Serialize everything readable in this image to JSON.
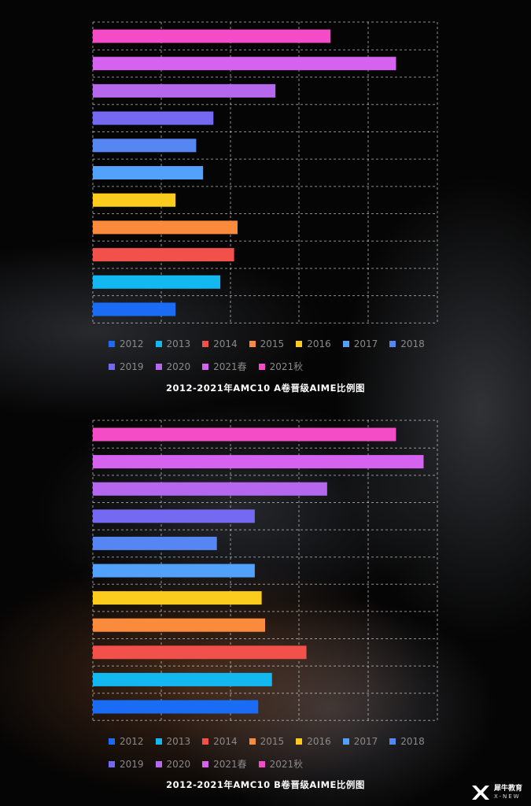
{
  "legend_colors": {
    "2012": "#1a6cf5",
    "2013": "#12b8ef",
    "2014": "#f2504b",
    "2015": "#fa8a3c",
    "2016": "#fbcb1e",
    "2017": "#52a2fc",
    "2018": "#5686f2",
    "2019": "#7469f0",
    "2020": "#b567ee",
    "2021春": "#d563ef",
    "2021秋": "#f44cc6"
  },
  "chart_data": [
    {
      "type": "bar",
      "orientation": "horizontal",
      "title": "2012-2021年AMC10 A卷晋级AIME比例图",
      "categories": [
        "2012",
        "2013",
        "2014",
        "2015",
        "2016",
        "2017",
        "2018",
        "2019",
        "2020",
        "2021春",
        "2021秋"
      ],
      "values": [
        2.4,
        3.7,
        4.1,
        4.2,
        2.4,
        3.2,
        3.0,
        3.5,
        5.3,
        8.8,
        6.9
      ],
      "xlim": [
        0,
        10
      ],
      "grid": true,
      "legend_position": "bottom",
      "legend": [
        "2012",
        "2013",
        "2014",
        "2015",
        "2016",
        "2017",
        "2018",
        "2019",
        "2020",
        "2021春",
        "2021秋"
      ]
    },
    {
      "type": "bar",
      "orientation": "horizontal",
      "title": "2012-2021年AMC10 B卷晋级AIME比例图",
      "categories": [
        "2012",
        "2013",
        "2014",
        "2015",
        "2016",
        "2017",
        "2018",
        "2019",
        "2020",
        "2021春",
        "2021秋"
      ],
      "values": [
        4.8,
        5.2,
        6.2,
        5.0,
        4.9,
        4.7,
        3.6,
        4.7,
        6.8,
        9.6,
        8.8
      ],
      "xlim": [
        0,
        10
      ],
      "grid": true,
      "legend_position": "bottom",
      "legend": [
        "2012",
        "2013",
        "2014",
        "2015",
        "2016",
        "2017",
        "2018",
        "2019",
        "2020",
        "2021春",
        "2021秋"
      ]
    }
  ],
  "logo": {
    "cn": "犀牛教育",
    "en": "X-NEW"
  }
}
